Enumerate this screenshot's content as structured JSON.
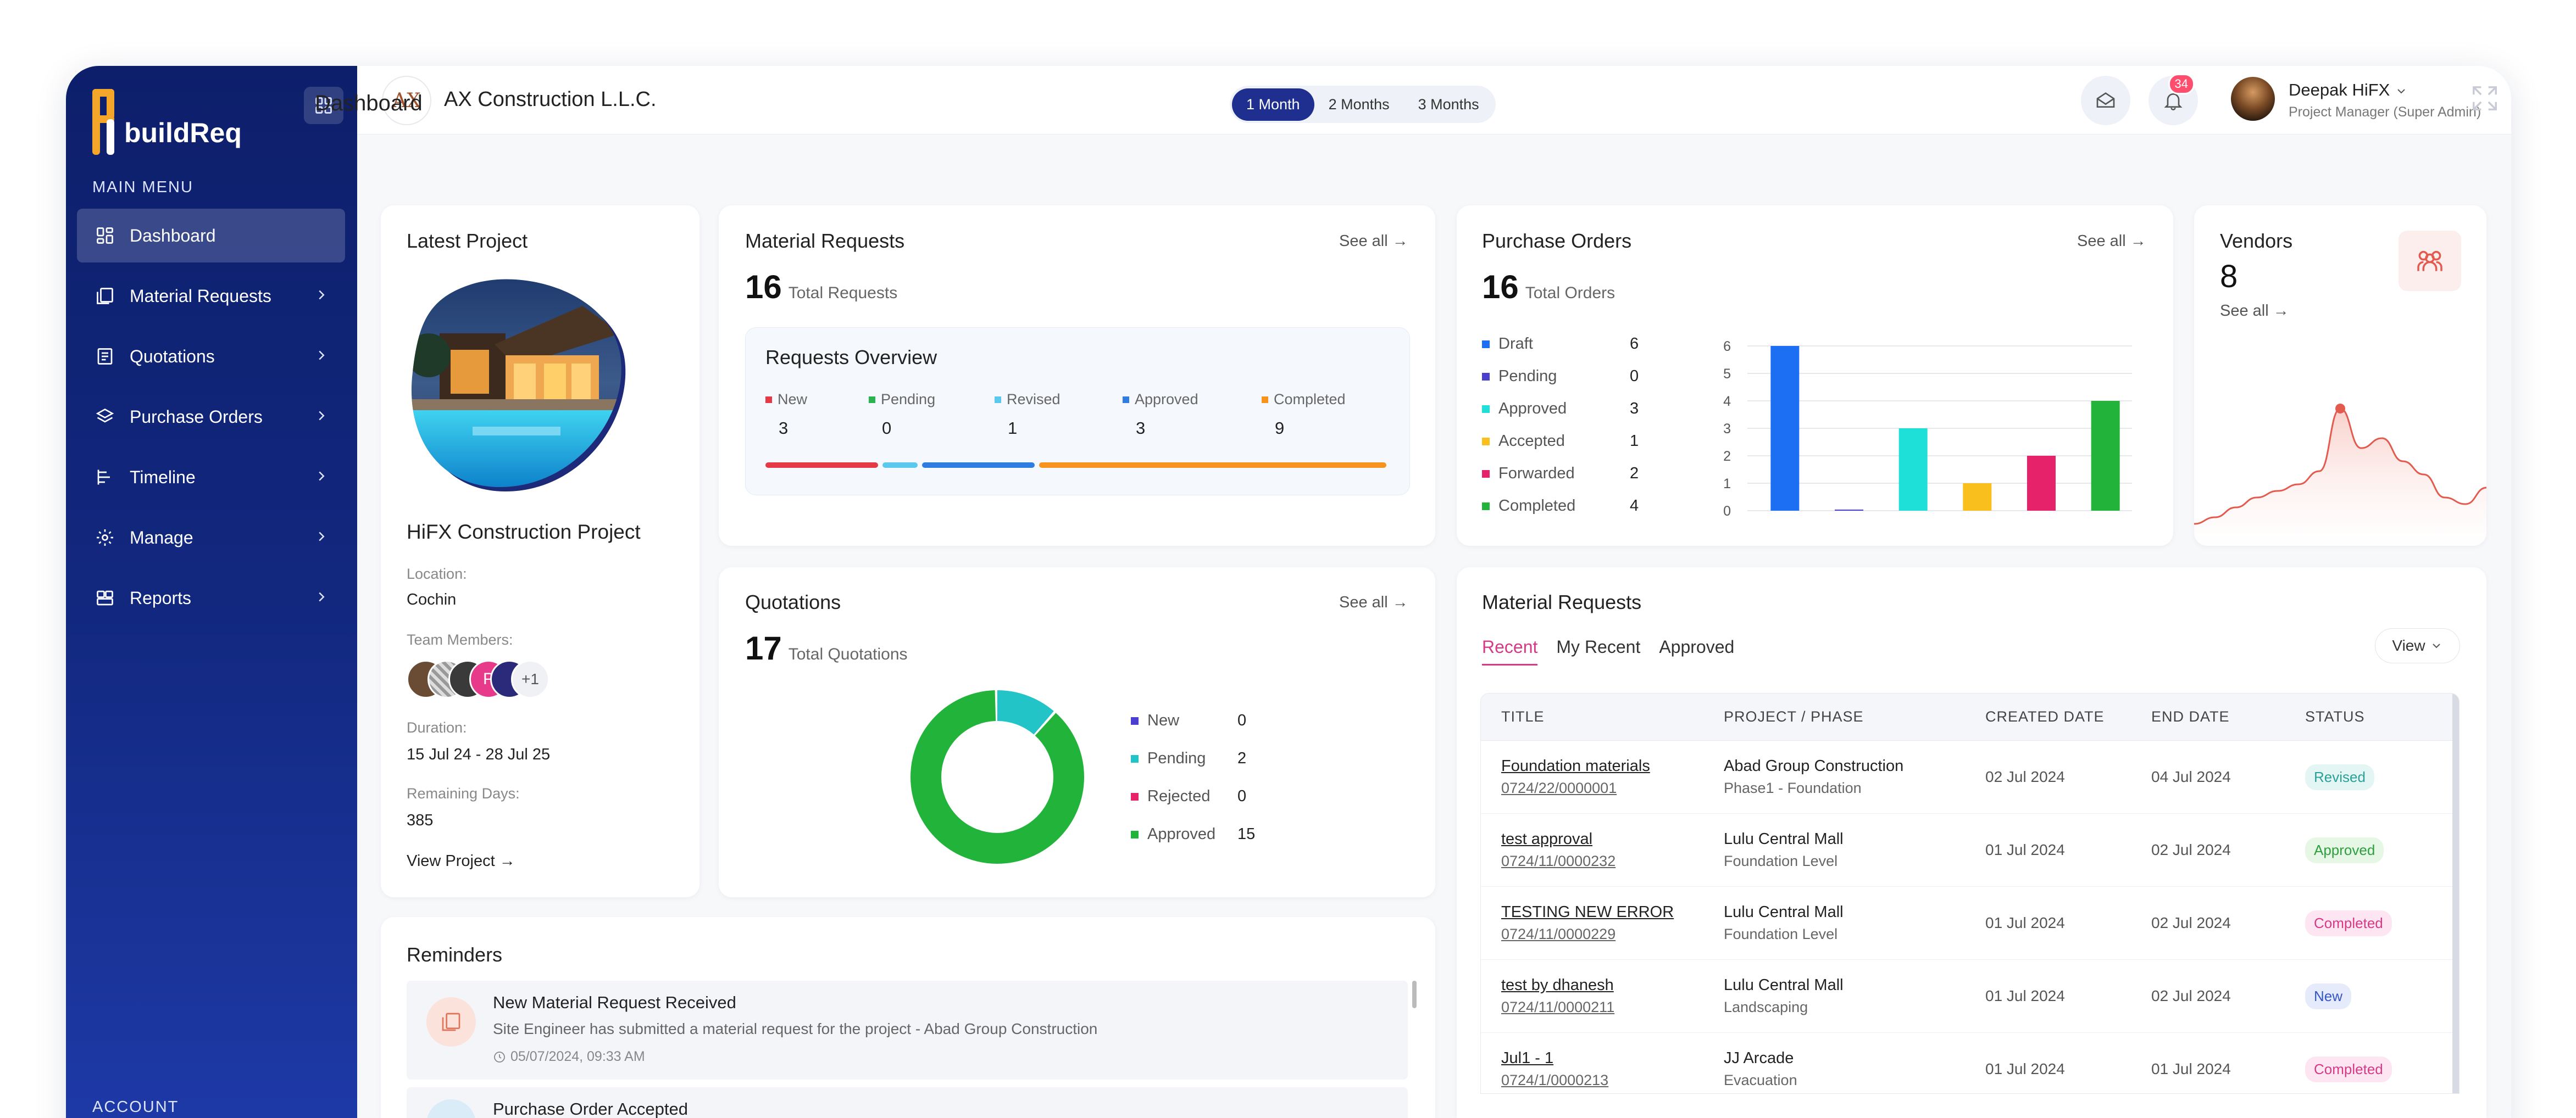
{
  "sidebar": {
    "logo": "buildReq",
    "main_menu_label": "MAIN MENU",
    "account_label": "ACCOUNT",
    "items": [
      {
        "label": "Dashboard"
      },
      {
        "label": "Material Requests"
      },
      {
        "label": "Quotations"
      },
      {
        "label": "Purchase Orders"
      },
      {
        "label": "Timeline"
      },
      {
        "label": "Manage"
      },
      {
        "label": "Reports"
      }
    ]
  },
  "header": {
    "company_logo": "AX",
    "company": "AX Construction L.L.C.",
    "notifications": "34",
    "user_name": "Deepak HiFX",
    "user_role": "Project Manager (Super Admin)"
  },
  "dashboard": {
    "title": "Dashboard",
    "ranges": [
      "1 Month",
      "2 Months",
      "3 Months"
    ]
  },
  "latest_project": {
    "title": "Latest Project",
    "name": "HiFX Construction Project",
    "location_label": "Location:",
    "location": "Cochin",
    "team_label": "Team Members:",
    "team_initial": "P",
    "team_more": "+1",
    "duration_label": "Duration:",
    "duration": "15 Jul 24 - 28 Jul 25",
    "remaining_label": "Remaining Days:",
    "remaining": "385",
    "view_link": "View Project →"
  },
  "material_requests": {
    "title": "Material Requests",
    "see_all": "See all →",
    "total": "16",
    "total_label": "Total Requests",
    "overview_title": "Requests Overview",
    "stats": [
      {
        "label": "New",
        "value": "3",
        "color": "#e63946"
      },
      {
        "label": "Pending",
        "value": "0",
        "color": "#2ab44f"
      },
      {
        "label": "Revised",
        "value": "1",
        "color": "#5bc8ee"
      },
      {
        "label": "Approved",
        "value": "3",
        "color": "#2f7de1"
      },
      {
        "label": "Completed",
        "value": "9",
        "color": "#f7941d"
      }
    ]
  },
  "purchase_orders": {
    "title": "Purchase Orders",
    "see_all": "See all →",
    "total": "16",
    "total_label": "Total Orders"
  },
  "vendors": {
    "title": "Vendors",
    "count": "8",
    "see_all": "See all →",
    "trend": [
      0.1,
      0.14,
      0.2,
      0.26,
      0.3,
      0.34,
      0.42,
      0.8,
      0.56,
      0.62,
      0.48,
      0.4,
      0.26,
      0.22,
      0.32
    ]
  },
  "quotations": {
    "title": "Quotations",
    "see_all": "See all →",
    "total": "17",
    "total_label": "Total Quotations"
  },
  "mr_table": {
    "title": "Material Requests",
    "tabs": [
      "Recent",
      "My Recent",
      "Approved"
    ],
    "view_label": "View",
    "headers": [
      "TITLE",
      "PROJECT / PHASE",
      "CREATED DATE",
      "END DATE",
      "STATUS"
    ],
    "rows": [
      {
        "title": "Foundation materials",
        "code": "0724/22/0000001",
        "project": "Abad Group Construction",
        "phase": "Phase1 - Foundation",
        "created": "02 Jul 2024",
        "end": "04 Jul 2024",
        "status": "Revised"
      },
      {
        "title": "test approval",
        "code": "0724/11/0000232",
        "project": "Lulu Central Mall",
        "phase": "Foundation Level",
        "created": "01 Jul 2024",
        "end": "02 Jul 2024",
        "status": "Approved"
      },
      {
        "title": "TESTING NEW ERROR",
        "code": "0724/11/0000229",
        "project": "Lulu Central Mall",
        "phase": "Foundation Level",
        "created": "01 Jul 2024",
        "end": "02 Jul 2024",
        "status": "Completed"
      },
      {
        "title": "test by dhanesh",
        "code": "0724/11/0000211",
        "project": "Lulu Central Mall",
        "phase": "Landscaping",
        "created": "01 Jul 2024",
        "end": "02 Jul 2024",
        "status": "New"
      },
      {
        "title": "Jul1 - 1",
        "code": "0724/1/0000213",
        "project": "JJ Arcade",
        "phase": "Evacuation",
        "created": "01 Jul 2024",
        "end": "01 Jul 2024",
        "status": "Completed"
      }
    ]
  },
  "reminders": {
    "title": "Reminders",
    "items": [
      {
        "title": "New Material Request Received",
        "desc": "Site Engineer has submitted a material request for the project - Abad Group Construction",
        "time": "05/07/2024, 09:33 AM"
      },
      {
        "title": "Purchase Order Accepted"
      }
    ]
  },
  "chart_data": [
    {
      "type": "bar",
      "categories": [
        "Draft",
        "Pending",
        "Approved",
        "Accepted",
        "Forwarded",
        "Completed"
      ],
      "values": [
        6,
        0,
        3,
        1,
        2,
        4
      ],
      "colors": [
        "#1c6ef2",
        "#4b3fcf",
        "#1ee0d8",
        "#f9c01d",
        "#e6226b",
        "#22b33a"
      ],
      "ylim": [
        0,
        6
      ],
      "yticks": [
        "0",
        "1",
        "2",
        "3",
        "4",
        "5",
        "6"
      ],
      "grid": true,
      "legend": "left"
    },
    {
      "type": "pie",
      "donut": true,
      "categories": [
        "New",
        "Pending",
        "Rejected",
        "Approved"
      ],
      "values": [
        0,
        2,
        0,
        15
      ],
      "colors": [
        "#4b3fcf",
        "#23c4c8",
        "#e6226b",
        "#22b33a"
      ],
      "legend": "right"
    }
  ]
}
